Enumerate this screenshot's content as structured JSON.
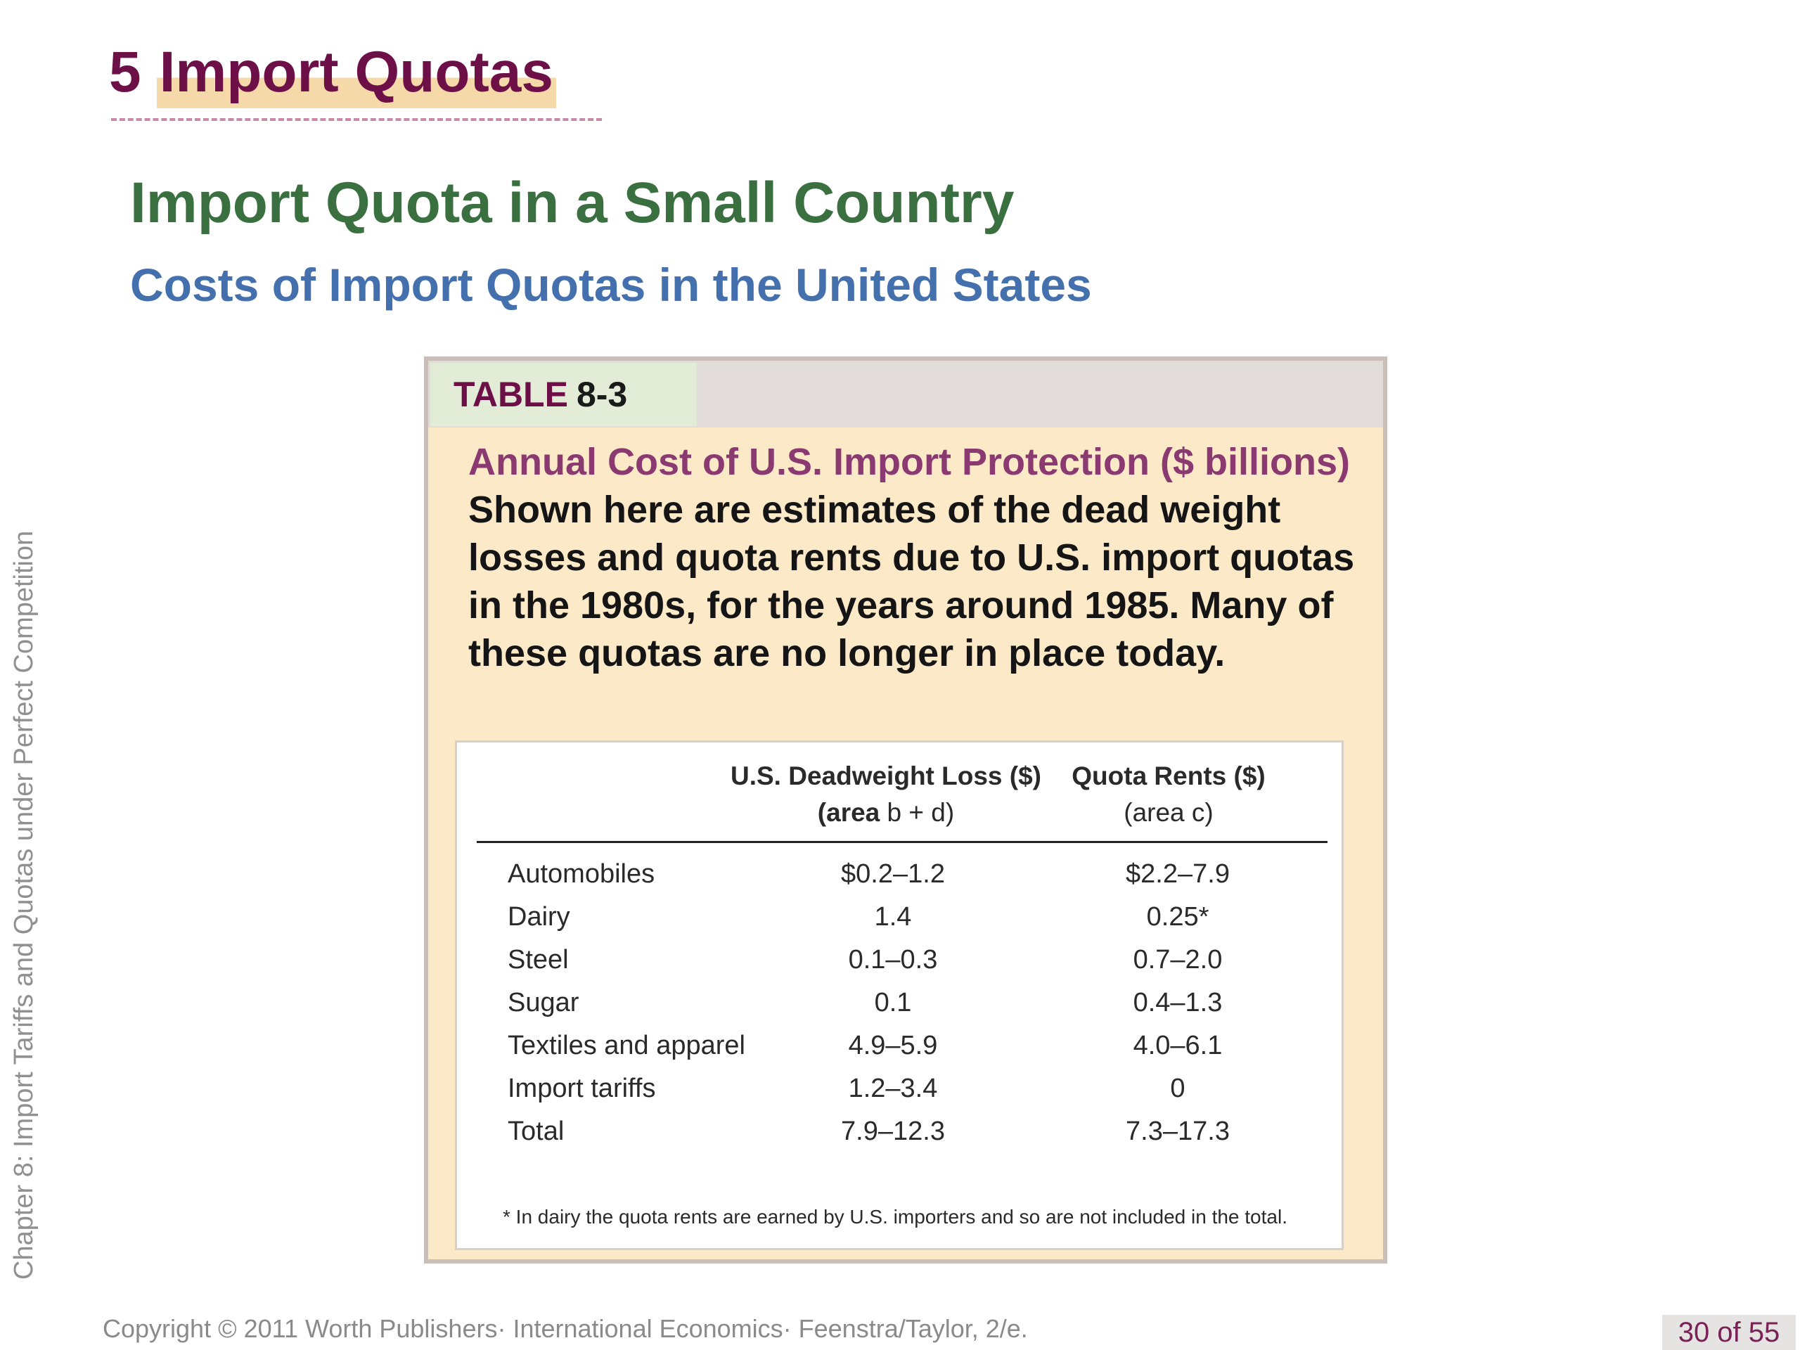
{
  "slide": {
    "section_number": "5",
    "section_title": "Import Quotas",
    "title": "Import Quota in a Small Country",
    "subtitle": "Costs of Import Quotas in the United States",
    "side_label": "Chapter 8:  Import Tariffs and Quotas under Perfect Competition",
    "copyright": "Copyright © 2011 Worth Publishers· International Economics· Feenstra/Taylor, 2/e.",
    "page_indicator": "30 of 55"
  },
  "table": {
    "label_word": "TABLE",
    "label_number": "8-3",
    "caption_title": "Annual Cost of U.S. Import Protection ($ billions)",
    "caption_text": " Shown here are estimates of the dead weight losses and quota rents due to U.S. import quotas in the 1980s, for the years around 1985. Many of these quotas are no longer in place today.",
    "columns": [
      {
        "line1": "U.S. Deadweight Loss ($)",
        "line2_bold": "(area",
        "line2_rest": " b + d)"
      },
      {
        "line1": "Quota Rents ($)",
        "line2_bold": "",
        "line2_rest": "(area  c)"
      }
    ],
    "rows": [
      {
        "category": "Automobiles",
        "deadweight_loss": "$0.2–1.2",
        "quota_rents": "$2.2–7.9"
      },
      {
        "category": "Dairy",
        "deadweight_loss": "1.4",
        "quota_rents": "0.25*"
      },
      {
        "category": "Steel",
        "deadweight_loss": "0.1–0.3",
        "quota_rents": "0.7–2.0"
      },
      {
        "category": "Sugar",
        "deadweight_loss": "0.1",
        "quota_rents": "0.4–1.3"
      },
      {
        "category": "Textiles and apparel",
        "deadweight_loss": "4.9–5.9",
        "quota_rents": "4.0–6.1"
      },
      {
        "category": "Import tariffs",
        "deadweight_loss": "1.2–3.4",
        "quota_rents": "0"
      },
      {
        "category": "Total",
        "deadweight_loss": "7.9–12.3",
        "quota_rents": "7.3–17.3"
      }
    ],
    "footnote": "* In dairy the quota rents are earned by U.S. importers and so are not included in the total."
  }
}
